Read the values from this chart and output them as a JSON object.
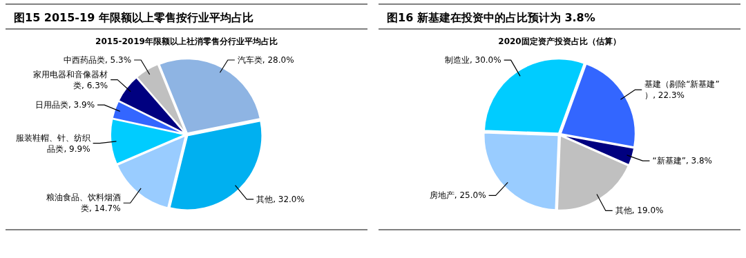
{
  "chart_data": [
    {
      "type": "pie",
      "title": "图15 2015-19 年限额以上零售按行业平均占比",
      "subtitle": "2015-2019年限额以上社消零售分行业平均占比",
      "categories": [
        "汽车类",
        "其他",
        "粮油食品、饮料烟酒类",
        "服装鞋帽、针、纺织品类",
        "日用品类",
        "家用电器和音像器材类",
        "中西药品类"
      ],
      "values": [
        28.0,
        32.0,
        14.7,
        9.9,
        3.9,
        6.3,
        5.3
      ],
      "value_labels": [
        ", 28.0%",
        ", 32.0%",
        ", 14.7%",
        ", 9.9%",
        ", 3.9%",
        ", 6.3%",
        ", 5.3%"
      ],
      "colors": [
        "#8eb4e3",
        "#00b0f0",
        "#99ccff",
        "#00ccff",
        "#3366ff",
        "#000080",
        "#c0c0c0"
      ]
    },
    {
      "type": "pie",
      "title": "图16 新基建在投资中的占比预计为 3.8%",
      "subtitle": "2020固定资产投资占比（估算）",
      "categories": [
        "基建（剔除“新基建”）",
        "“新基建”",
        "其他",
        "房地产",
        "制造业"
      ],
      "values": [
        22.3,
        3.8,
        19.0,
        25.0,
        30.0
      ],
      "value_labels": [
        ", 22.3%",
        ", 3.8%",
        ", 19.0%",
        ", 25.0%",
        ", 30.0%"
      ],
      "colors": [
        "#3366ff",
        "#000080",
        "#c0c0c0",
        "#99ccff",
        "#00ccff"
      ]
    }
  ]
}
